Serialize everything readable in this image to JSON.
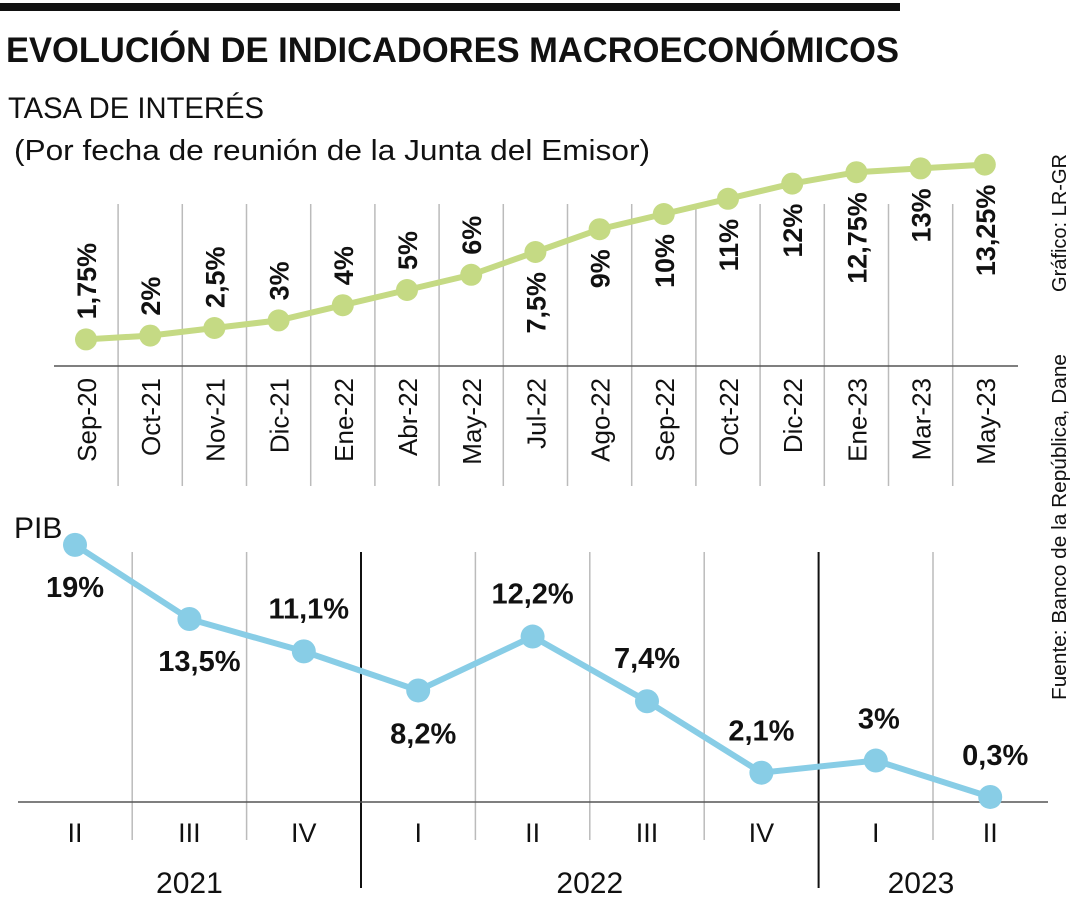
{
  "header": {
    "title": "EVOLUCIÓN DE INDICADORES MACROECONÓMICOS",
    "credit": "Gráfico: LR-GR",
    "source": "Fuente: Banco de la República, Dane"
  },
  "colors": {
    "rate_series": "#c5da84",
    "gdp_series": "#88cde6",
    "year_separator": "#111111",
    "grid": "#bbbbbb"
  },
  "chart_data": [
    {
      "type": "line",
      "title": "TASA DE INTERÉS",
      "subtitle": "(Por fecha de reunión de la Junta del Emisor)",
      "categories": [
        "Sep-20",
        "Oct-21",
        "Nov-21",
        "Dic-21",
        "Ene-22",
        "Abr-22",
        "May-22",
        "Jul-22",
        "Ago-22",
        "Sep-22",
        "Oct-22",
        "Dic-22",
        "Ene-23",
        "Mar-23",
        "May-23"
      ],
      "values": [
        1.75,
        2,
        2.5,
        3,
        4,
        5,
        6,
        7.5,
        9,
        10,
        11,
        12,
        12.75,
        13,
        13.25
      ],
      "labels": [
        "1,75%",
        "2%",
        "2,5%",
        "3%",
        "4%",
        "5%",
        "6%",
        "7,5%",
        "9%",
        "10%",
        "11%",
        "12%",
        "12,75%",
        "13%",
        "13,25%"
      ],
      "unit": "%",
      "grid": "vertical"
    },
    {
      "type": "line",
      "title": "PIB",
      "categories": [
        "II",
        "III",
        "IV",
        "I",
        "II",
        "III",
        "IV",
        "I",
        "II"
      ],
      "years": [
        {
          "label": "2021",
          "quarters": 3
        },
        {
          "label": "2022",
          "quarters": 4
        },
        {
          "label": "2023",
          "quarters": 2
        }
      ],
      "values": [
        19,
        13.5,
        11.1,
        8.2,
        12.2,
        7.4,
        2.1,
        3,
        0.3
      ],
      "labels": [
        "19%",
        "13,5%",
        "11,1%",
        "8,2%",
        "12,2%",
        "7,4%",
        "2,1%",
        "3%",
        "0,3%"
      ],
      "unit": "%",
      "grid": "vertical"
    }
  ]
}
